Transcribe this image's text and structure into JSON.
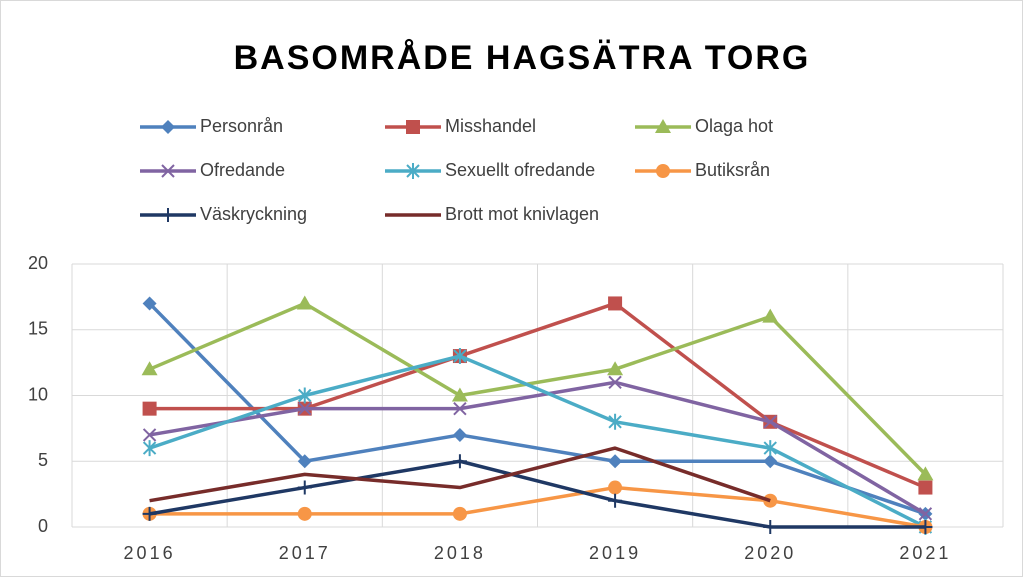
{
  "chart_data": {
    "type": "line",
    "title": "BASOMRÅDE HAGSÄTRA TORG",
    "categories": [
      "2016",
      "2017",
      "2018",
      "2019",
      "2020",
      "2021"
    ],
    "ylim": [
      0,
      20
    ],
    "yticks": [
      0,
      5,
      10,
      15,
      20
    ],
    "grid": true,
    "series": [
      {
        "name": "Personrån",
        "color": "#4f81bd",
        "marker": "diamond",
        "values": [
          17,
          5,
          7,
          5,
          5,
          1
        ]
      },
      {
        "name": "Misshandel",
        "color": "#c0504d",
        "marker": "square",
        "values": [
          9,
          9,
          13,
          17,
          8,
          3
        ]
      },
      {
        "name": "Olaga hot",
        "color": "#9bbb59",
        "marker": "triangle",
        "values": [
          12,
          17,
          10,
          12,
          16,
          4
        ]
      },
      {
        "name": "Ofredande",
        "color": "#8064a2",
        "marker": "x",
        "values": [
          7,
          9,
          9,
          11,
          8,
          1
        ]
      },
      {
        "name": "Sexuellt ofredande",
        "color": "#4bacc6",
        "marker": "star",
        "values": [
          6,
          10,
          13,
          8,
          6,
          0
        ]
      },
      {
        "name": "Butiksrån",
        "color": "#f79646",
        "marker": "circle",
        "values": [
          1,
          1,
          1,
          3,
          2,
          0
        ]
      },
      {
        "name": "Väskryckning",
        "color": "#1f3864",
        "marker": "plus",
        "values": [
          1,
          3,
          5,
          2,
          0,
          0
        ]
      },
      {
        "name": "Brott mot knivlagen",
        "color": "#772c2a",
        "marker": "none",
        "values": [
          2,
          4,
          3,
          6,
          2,
          null
        ]
      }
    ]
  }
}
